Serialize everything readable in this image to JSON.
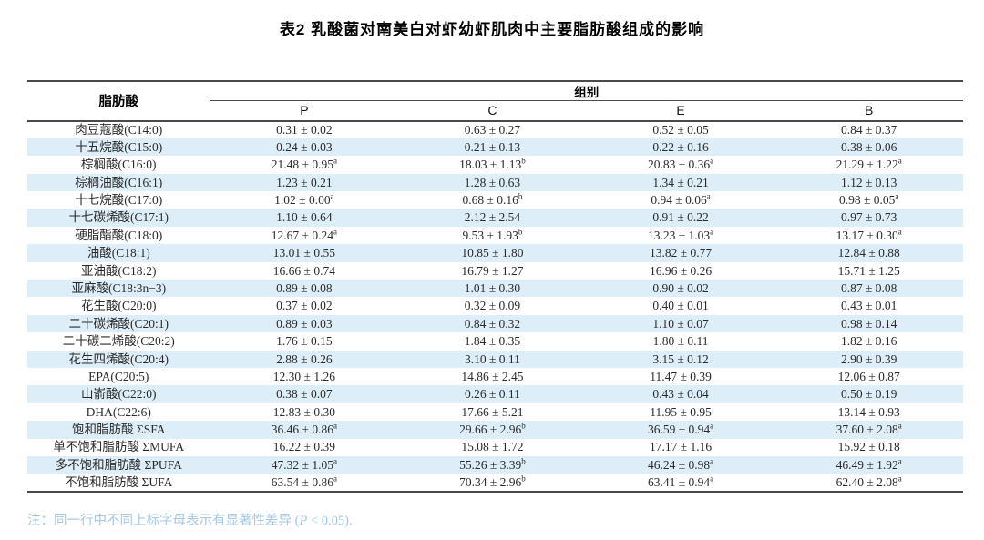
{
  "title": "表2 乳酸菌对南美白对虾幼虾肌肉中主要脂肪酸组成的影响",
  "table": {
    "col1_header": "脂肪酸",
    "group_header": "组别",
    "group_columns": [
      "P",
      "C",
      "E",
      "B"
    ],
    "rows": [
      {
        "name": "肉豆蔻酸(C14:0)",
        "values": [
          "0.31 ± 0.02",
          "0.63 ± 0.27",
          "0.52 ± 0.05",
          "0.84 ± 0.37"
        ]
      },
      {
        "name": "十五烷酸(C15:0)",
        "values": [
          "0.24 ± 0.03",
          "0.21 ± 0.13",
          "0.22 ± 0.16",
          "0.38 ± 0.06"
        ]
      },
      {
        "name": "棕榈酸(C16:0)",
        "values": [
          "21.48 ± 0.95^a",
          "18.03 ± 1.13^b",
          "20.83 ± 0.36^a",
          "21.29 ± 1.22^a"
        ]
      },
      {
        "name": "棕榈油酸(C16:1)",
        "values": [
          "1.23 ± 0.21",
          "1.28 ± 0.63",
          "1.34 ± 0.21",
          "1.12 ± 0.13"
        ]
      },
      {
        "name": "十七烷酸(C17:0)",
        "values": [
          "1.02 ± 0.00^a",
          "0.68 ± 0.16^b",
          "0.94 ± 0.06^a",
          "0.98 ± 0.05^a"
        ]
      },
      {
        "name": "十七碳烯酸(C17:1)",
        "values": [
          "1.10 ± 0.64",
          "2.12 ± 2.54",
          "0.91 ± 0.22",
          "0.97 ± 0.73"
        ]
      },
      {
        "name": "硬脂酯酸(C18:0)",
        "values": [
          "12.67 ± 0.24^a",
          "9.53 ± 1.93^b",
          "13.23 ± 1.03^a",
          "13.17 ± 0.30^a"
        ]
      },
      {
        "name": "油酸(C18:1)",
        "values": [
          "13.01 ± 0.55",
          "10.85 ± 1.80",
          "13.82 ± 0.77",
          "12.84 ± 0.88"
        ]
      },
      {
        "name": "亚油酸(C18:2)",
        "values": [
          "16.66 ± 0.74",
          "16.79 ± 1.27",
          "16.96 ± 0.26",
          "15.71 ± 1.25"
        ]
      },
      {
        "name": "亚麻酸(C18:3n−3)",
        "values": [
          "0.89 ± 0.08",
          "1.01 ± 0.30",
          "0.90 ± 0.02",
          "0.87 ± 0.08"
        ]
      },
      {
        "name": "花生酸(C20:0)",
        "values": [
          "0.37 ± 0.02",
          "0.32 ± 0.09",
          "0.40 ± 0.01",
          "0.43 ± 0.01"
        ]
      },
      {
        "name": "二十碳烯酸(C20:1)",
        "values": [
          "0.89 ± 0.03",
          "0.84 ± 0.32",
          "1.10 ± 0.07",
          "0.98 ± 0.14"
        ]
      },
      {
        "name": "二十碳二烯酸(C20:2)",
        "values": [
          "1.76 ± 0.15",
          "1.84 ± 0.35",
          "1.80 ± 0.11",
          "1.82 ± 0.16"
        ]
      },
      {
        "name": "花生四烯酸(C20:4)",
        "values": [
          "2.88 ± 0.26",
          "3.10 ± 0.11",
          "3.15 ± 0.12",
          "2.90 ± 0.39"
        ]
      },
      {
        "name": "EPA(C20:5)",
        "values": [
          "12.30 ± 1.26",
          "14.86 ± 2.45",
          "11.47 ± 0.39",
          "12.06 ± 0.87"
        ]
      },
      {
        "name": "山嵛酸(C22:0)",
        "values": [
          "0.38 ± 0.07",
          "0.26 ± 0.11",
          "0.43 ± 0.04",
          "0.50 ± 0.19"
        ]
      },
      {
        "name": "DHA(C22:6)",
        "values": [
          "12.83 ± 0.30",
          "17.66 ± 5.21",
          "11.95 ± 0.95",
          "13.14 ± 0.93"
        ]
      },
      {
        "name": "饱和脂肪酸 ΣSFA",
        "values": [
          "36.46 ± 0.86^a",
          "29.66 ± 2.96^b",
          "36.59 ± 0.94^a",
          "37.60 ± 2.08^a"
        ]
      },
      {
        "name": "单不饱和脂肪酸 ΣMUFA",
        "values": [
          "16.22 ± 0.39",
          "15.08 ± 1.72",
          "17.17 ± 1.16",
          "15.92 ± 0.18"
        ]
      },
      {
        "name": "多不饱和脂肪酸 ΣPUFA",
        "values": [
          "47.32 ± 1.05^a",
          "55.26 ± 3.39^b",
          "46.24 ± 0.98^a",
          "46.49 ± 1.92^a"
        ]
      },
      {
        "name": "不饱和脂肪酸 ΣUFA",
        "values": [
          "63.54 ± 0.86^a",
          "70.34 ± 2.96^b",
          "63.41 ± 0.94^a",
          "62.40 ± 2.08^a"
        ]
      }
    ]
  },
  "footnote": {
    "prefix": "注：同一行中不同上标字母表示有显著性差异 (",
    "italic": "P",
    "suffix": " < 0.05)."
  },
  "colors": {
    "stripe": "#ddeef8",
    "footnote_text": "#a5c8e4",
    "rule": "#4a4a4a"
  }
}
